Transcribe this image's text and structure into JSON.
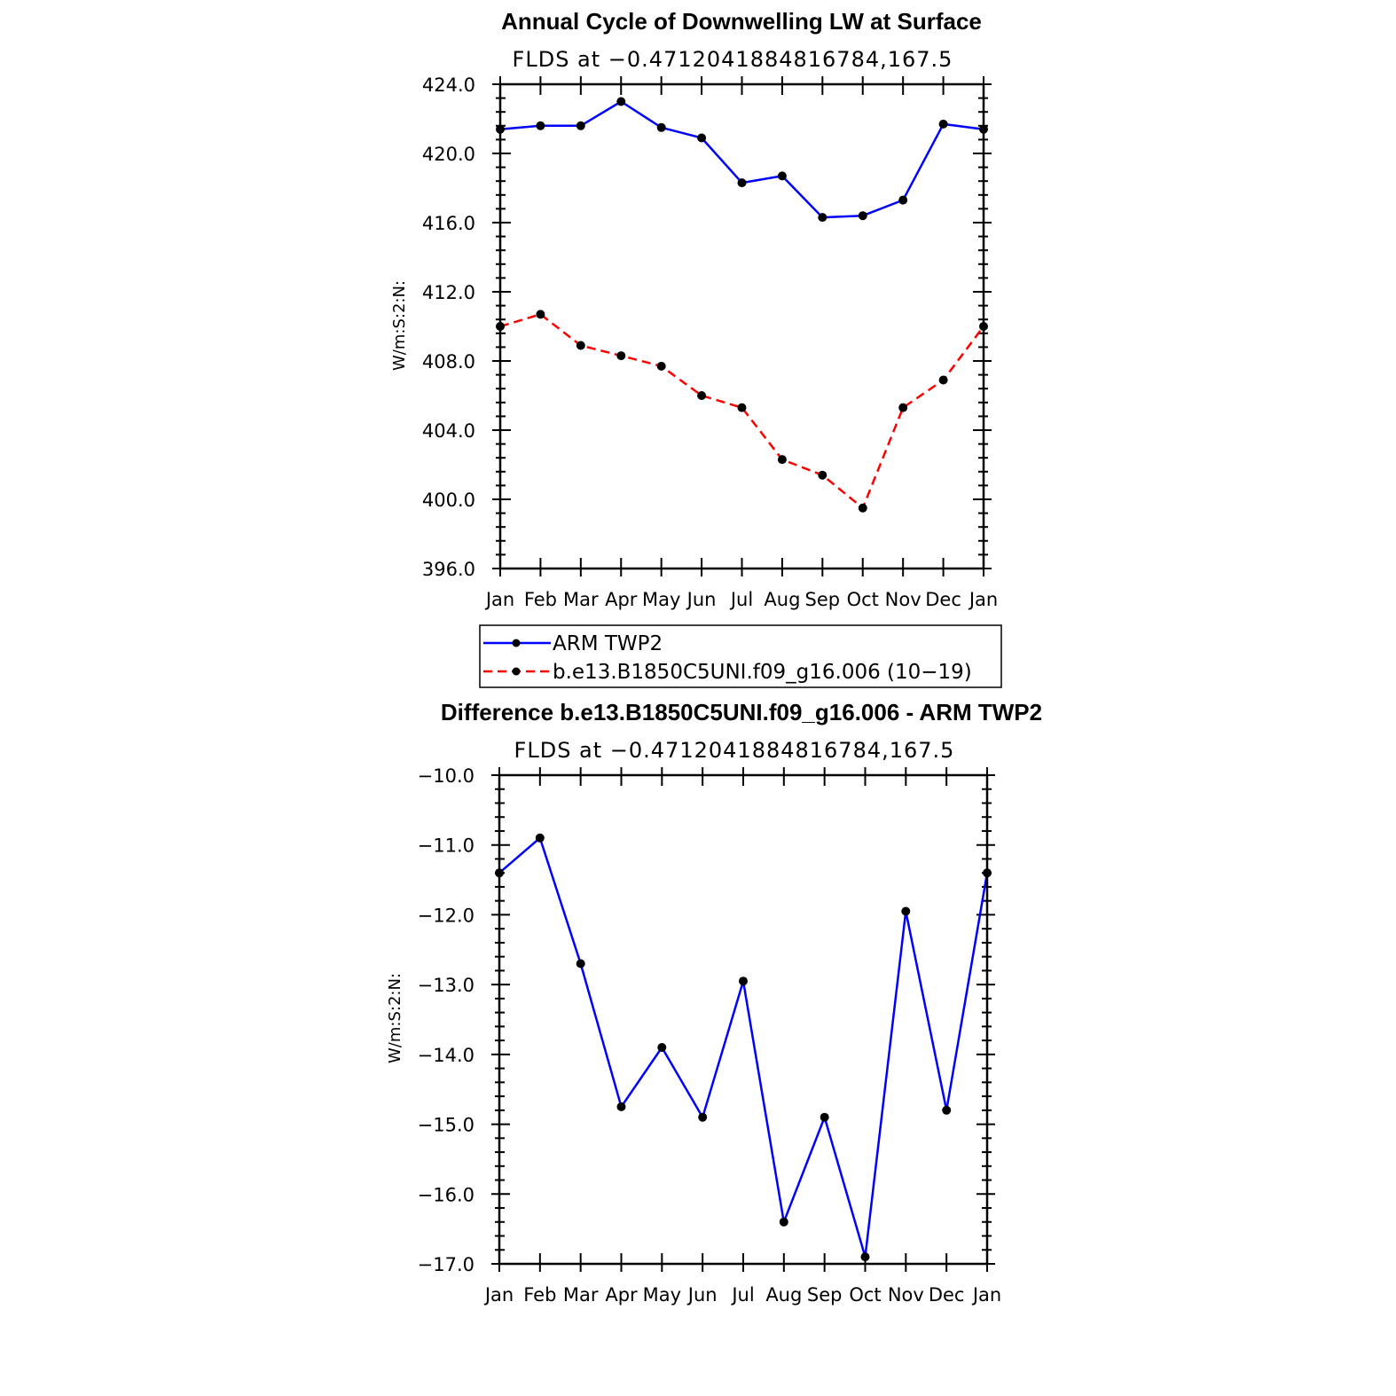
{
  "chart_data": [
    {
      "type": "line",
      "title": "Annual Cycle of Downwelling LW at Surface",
      "subtitle": "FLDS at −0.4712041884816784,167.5",
      "ylabel": "W/m:S:2:N:",
      "categories": [
        "Jan",
        "Feb",
        "Mar",
        "Apr",
        "May",
        "Jun",
        "Jul",
        "Aug",
        "Sep",
        "Oct",
        "Nov",
        "Dec",
        "Jan"
      ],
      "ylim": [
        396,
        424
      ],
      "yticks": [
        "396.0",
        "400.0",
        "404.0",
        "408.0",
        "412.0",
        "416.0",
        "420.0",
        "424.0"
      ],
      "series": [
        {
          "name": "ARM TWP2",
          "color": "#0000ff",
          "dash": "solid",
          "values": [
            421.4,
            421.6,
            421.6,
            423.0,
            421.5,
            420.9,
            418.3,
            418.7,
            416.3,
            416.4,
            417.3,
            421.7,
            421.4
          ]
        },
        {
          "name": "b.e13.B1850C5UNI.f09_g16.006 (10−19)",
          "color": "#ff0000",
          "dash": "dashed",
          "values": [
            410.0,
            410.7,
            408.9,
            408.3,
            407.7,
            406.0,
            405.3,
            402.3,
            401.4,
            399.5,
            405.3,
            406.9,
            410.0
          ]
        }
      ],
      "legend": "below"
    },
    {
      "type": "line",
      "title": "Difference b.e13.B1850C5UNI.f09_g16.006 - ARM TWP2",
      "subtitle": "FLDS at −0.4712041884816784,167.5",
      "ylabel": "W/m:S:2:N:",
      "categories": [
        "Jan",
        "Feb",
        "Mar",
        "Apr",
        "May",
        "Jun",
        "Jul",
        "Aug",
        "Sep",
        "Oct",
        "Nov",
        "Dec",
        "Jan"
      ],
      "ylim": [
        -17,
        -10
      ],
      "yticks": [
        "−17.0",
        "−16.0",
        "−15.0",
        "−14.0",
        "−13.0",
        "−12.0",
        "−11.0",
        "−10.0"
      ],
      "series": [
        {
          "color": "#0000ff",
          "dash": "solid",
          "values": [
            -11.4,
            -10.9,
            -12.7,
            -14.75,
            -13.9,
            -14.9,
            -12.95,
            -16.4,
            -14.9,
            -16.9,
            -11.95,
            -14.8,
            -11.4
          ]
        }
      ]
    }
  ]
}
